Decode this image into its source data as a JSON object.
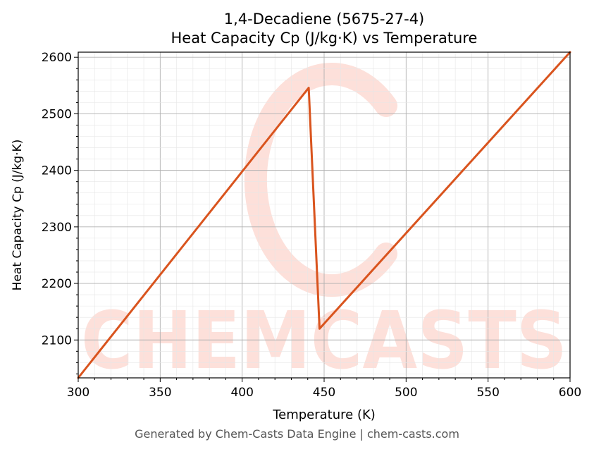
{
  "chart_data": {
    "type": "line",
    "title": "1,4-Decadiene (5675-27-4)",
    "subtitle": "Heat Capacity Cp (J/kg·K) vs Temperature",
    "xlabel": "Temperature (K)",
    "ylabel": "Heat Capacity Cp (J/kg·K)",
    "xlim": [
      300,
      600
    ],
    "ylim": [
      2033,
      2609
    ],
    "x_ticks": [
      300,
      350,
      400,
      450,
      500,
      550,
      600
    ],
    "y_ticks": [
      2100,
      2200,
      2300,
      2400,
      2500,
      2600
    ],
    "grid": true,
    "line_color": "#d9541e",
    "series": [
      {
        "x": [
          300,
          440.6,
          447.2,
          600
        ],
        "y": [
          2033,
          2546,
          2120,
          2609
        ]
      }
    ],
    "watermark": "CHEMCASTS"
  },
  "footer": "Generated by Chem-Casts Data Engine | chem-casts.com"
}
